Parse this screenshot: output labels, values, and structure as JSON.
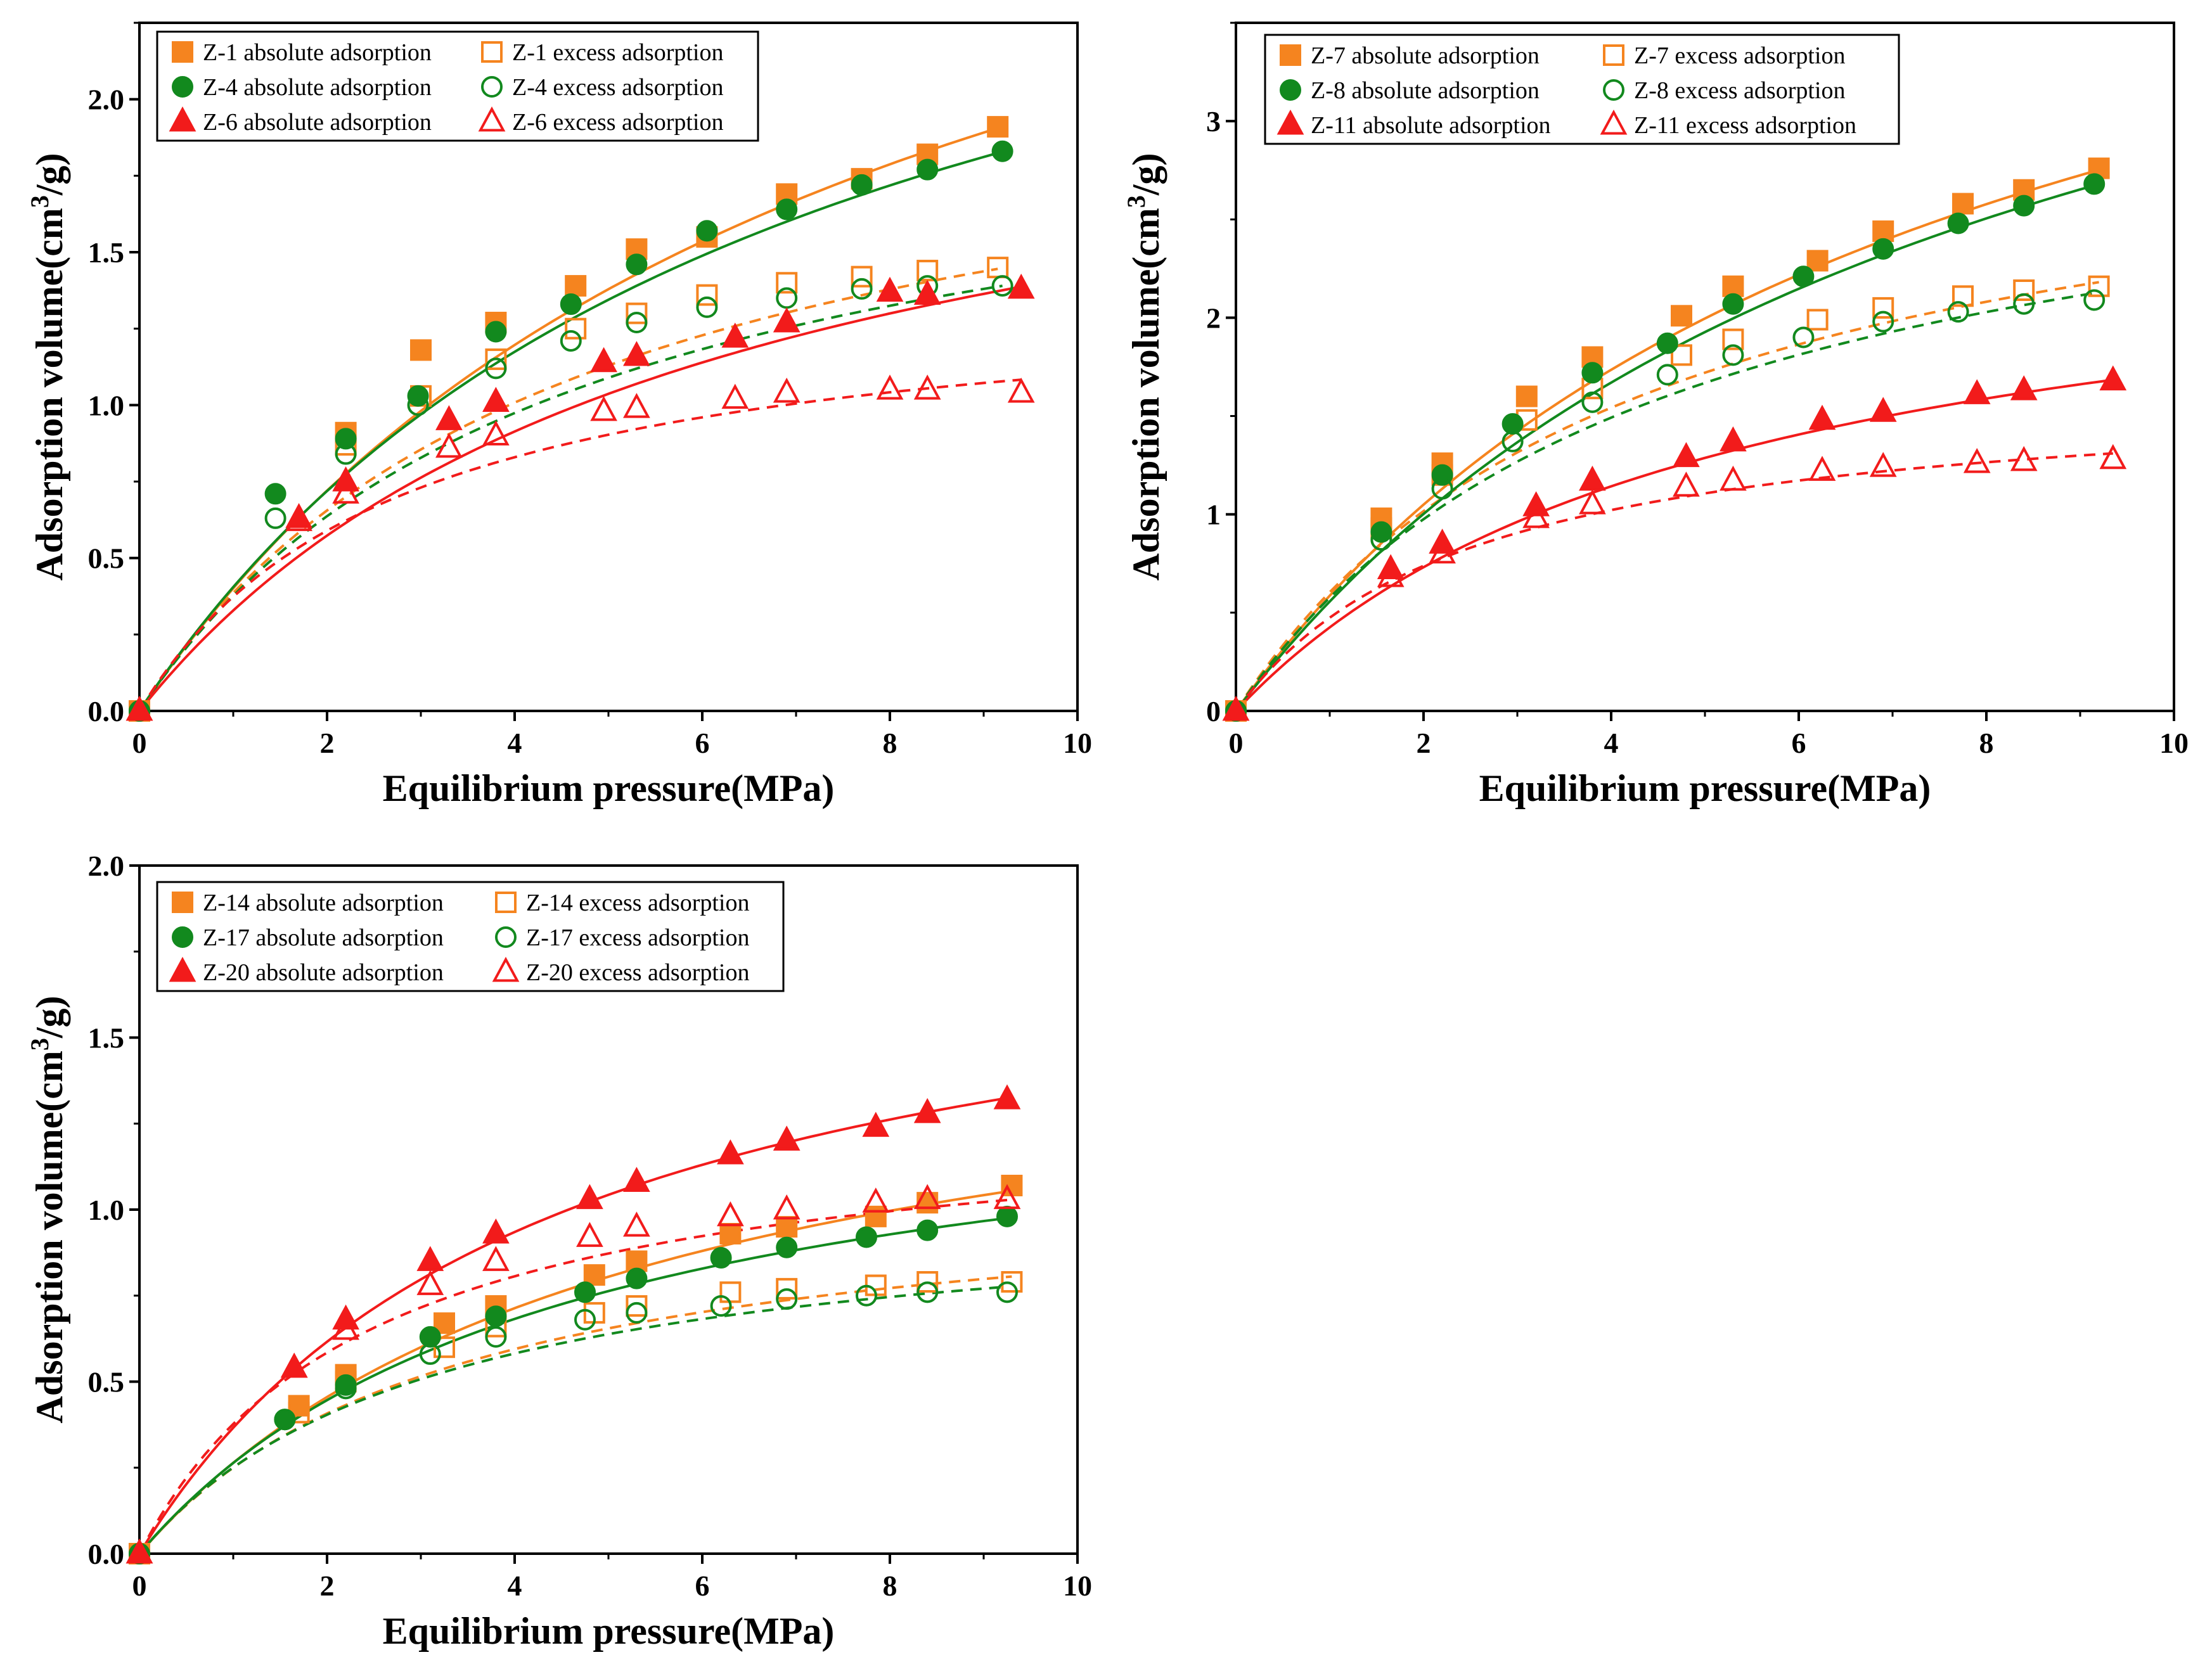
{
  "colors": {
    "orange": "#F5841F",
    "green": "#12891E",
    "red": "#F21B1B"
  },
  "chart_data": [
    {
      "type": "scatter",
      "xlabel": "Equilibrium pressure(MPa)",
      "ylabel_prefix": "Adsorption volume(cm",
      "ylabel_sup": "3",
      "ylabel_suffix": "/g)",
      "xlim": [
        0,
        10
      ],
      "ylim": [
        0,
        2.25
      ],
      "xticks": [
        0,
        2,
        4,
        6,
        8,
        10
      ],
      "yticks": [
        0.0,
        0.5,
        1.0,
        1.5,
        2.0
      ],
      "ytick_decimals": 1,
      "legend": "top-left",
      "grid": false,
      "series": [
        {
          "name": "Z-1 absolute adsorption",
          "color": "orange",
          "marker": "square",
          "filled": true,
          "dashed": false,
          "x": [
            0,
            2.2,
            3.0,
            3.8,
            4.65,
            5.3,
            6.05,
            6.9,
            7.7,
            8.4,
            9.15
          ],
          "y": [
            0,
            0.91,
            1.18,
            1.27,
            1.39,
            1.51,
            1.55,
            1.69,
            1.74,
            1.82,
            1.91
          ],
          "fit": {
            "vl": 3.53,
            "pl": 7.8
          }
        },
        {
          "name": "Z-1 excess adsorption",
          "color": "orange",
          "marker": "square",
          "filled": false,
          "dashed": true,
          "x": [
            0,
            2.2,
            3.0,
            3.8,
            4.65,
            5.3,
            6.05,
            6.9,
            7.7,
            8.4,
            9.15
          ],
          "y": [
            0,
            0.87,
            1.03,
            1.15,
            1.25,
            1.3,
            1.36,
            1.4,
            1.42,
            1.44,
            1.45
          ],
          "fit": {
            "vl": 2.18,
            "pl": 4.65
          }
        },
        {
          "name": "Z-4 absolute adsorption",
          "color": "green",
          "marker": "circle",
          "filled": true,
          "dashed": false,
          "x": [
            0,
            1.45,
            2.2,
            2.97,
            3.8,
            4.6,
            5.3,
            6.05,
            6.9,
            7.7,
            8.4,
            9.2
          ],
          "y": [
            0,
            0.71,
            0.89,
            1.03,
            1.24,
            1.33,
            1.46,
            1.57,
            1.64,
            1.72,
            1.77,
            1.83
          ],
          "fit": {
            "vl": 3.2,
            "pl": 6.9
          }
        },
        {
          "name": "Z-4 excess adsorption",
          "color": "green",
          "marker": "circle",
          "filled": false,
          "dashed": true,
          "x": [
            0,
            1.45,
            2.2,
            2.97,
            3.8,
            4.6,
            5.3,
            6.05,
            6.9,
            7.7,
            8.4,
            9.2
          ],
          "y": [
            0,
            0.63,
            0.84,
            1.0,
            1.12,
            1.21,
            1.27,
            1.32,
            1.35,
            1.38,
            1.39,
            1.39
          ],
          "fit": {
            "vl": 2.07,
            "pl": 4.5
          }
        },
        {
          "name": "Z-6 absolute adsorption",
          "color": "red",
          "marker": "triangle",
          "filled": true,
          "dashed": false,
          "x": [
            0,
            1.7,
            2.2,
            3.3,
            3.8,
            4.95,
            5.3,
            6.35,
            6.9,
            8.0,
            8.4,
            9.4
          ],
          "y": [
            0,
            0.63,
            0.75,
            0.95,
            1.01,
            1.14,
            1.16,
            1.22,
            1.27,
            1.37,
            1.36,
            1.38
          ],
          "fit": {
            "vl": 2.25,
            "pl": 5.85
          }
        },
        {
          "name": "Z-6 excess adsorption",
          "color": "red",
          "marker": "triangle",
          "filled": false,
          "dashed": true,
          "x": [
            0,
            1.7,
            2.2,
            3.3,
            3.8,
            4.95,
            5.3,
            6.35,
            6.9,
            8.0,
            8.4,
            9.4
          ],
          "y": [
            0,
            0.62,
            0.71,
            0.86,
            0.9,
            0.98,
            0.99,
            1.02,
            1.04,
            1.05,
            1.05,
            1.04
          ],
          "fit": {
            "vl": 1.4,
            "pl": 2.75
          }
        }
      ]
    },
    {
      "type": "scatter",
      "xlabel": "Equilibrium pressure(MPa)",
      "ylabel_prefix": "Adsorption volume(cm",
      "ylabel_sup": "3",
      "ylabel_suffix": "/g)",
      "xlim": [
        0,
        10
      ],
      "ylim": [
        0,
        3.5
      ],
      "xticks": [
        0,
        2,
        4,
        6,
        8,
        10
      ],
      "yticks": [
        0,
        1,
        2,
        3
      ],
      "ytick_decimals": 0,
      "legend": "top-left",
      "grid": false,
      "series": [
        {
          "name": "Z-7 absolute adsorption",
          "color": "orange",
          "marker": "square",
          "filled": true,
          "dashed": false,
          "x": [
            0,
            1.55,
            2.2,
            3.1,
            3.8,
            4.75,
            5.3,
            6.2,
            6.9,
            7.75,
            8.4,
            9.2
          ],
          "y": [
            0,
            0.98,
            1.26,
            1.6,
            1.8,
            2.01,
            2.16,
            2.29,
            2.44,
            2.58,
            2.65,
            2.76
          ],
          "fit": {
            "vl": 5.01,
            "pl": 7.55
          }
        },
        {
          "name": "Z-7 excess adsorption",
          "color": "orange",
          "marker": "square",
          "filled": false,
          "dashed": true,
          "x": [
            0,
            1.55,
            2.2,
            3.1,
            3.8,
            4.75,
            5.3,
            6.2,
            6.9,
            7.75,
            8.4,
            9.2
          ],
          "y": [
            0,
            0.93,
            1.2,
            1.48,
            1.64,
            1.81,
            1.89,
            1.99,
            2.05,
            2.11,
            2.14,
            2.16
          ],
          "fit": {
            "vl": 3.2,
            "pl": 4.3
          }
        },
        {
          "name": "Z-8 absolute adsorption",
          "color": "green",
          "marker": "circle",
          "filled": true,
          "dashed": false,
          "x": [
            0,
            1.55,
            2.2,
            2.95,
            3.8,
            4.6,
            5.3,
            6.05,
            6.9,
            7.7,
            8.4,
            9.15
          ],
          "y": [
            0,
            0.91,
            1.2,
            1.46,
            1.72,
            1.87,
            2.07,
            2.21,
            2.35,
            2.48,
            2.57,
            2.68
          ],
          "fit": {
            "vl": 5.01,
            "pl": 8.0
          }
        },
        {
          "name": "Z-8 excess adsorption",
          "color": "green",
          "marker": "circle",
          "filled": false,
          "dashed": true,
          "x": [
            0,
            1.55,
            2.2,
            2.95,
            3.8,
            4.6,
            5.3,
            6.05,
            6.9,
            7.7,
            8.4,
            9.15
          ],
          "y": [
            0,
            0.87,
            1.13,
            1.37,
            1.57,
            1.71,
            1.81,
            1.9,
            1.98,
            2.03,
            2.07,
            2.09
          ],
          "fit": {
            "vl": 3.17,
            "pl": 4.5
          }
        },
        {
          "name": "Z-11 absolute adsorption",
          "color": "red",
          "marker": "triangle",
          "filled": true,
          "dashed": false,
          "x": [
            0,
            1.65,
            2.2,
            3.2,
            3.8,
            4.8,
            5.3,
            6.25,
            6.9,
            7.9,
            8.4,
            9.35
          ],
          "y": [
            0,
            0.72,
            0.85,
            1.04,
            1.17,
            1.29,
            1.37,
            1.48,
            1.52,
            1.61,
            1.63,
            1.68
          ],
          "fit": {
            "vl": 2.61,
            "pl": 5.14
          }
        },
        {
          "name": "Z-11 excess adsorption",
          "color": "red",
          "marker": "triangle",
          "filled": false,
          "dashed": true,
          "x": [
            0,
            1.65,
            2.2,
            3.2,
            3.8,
            4.8,
            5.3,
            6.25,
            6.9,
            7.9,
            8.4,
            9.35
          ],
          "y": [
            0,
            0.68,
            0.8,
            0.98,
            1.05,
            1.14,
            1.17,
            1.22,
            1.24,
            1.26,
            1.27,
            1.28
          ],
          "fit": {
            "vl": 1.66,
            "pl": 2.5
          }
        }
      ]
    },
    {
      "type": "scatter",
      "xlabel": "Equilibrium pressure(MPa)",
      "ylabel_prefix": "Adsorption volume(cm",
      "ylabel_sup": "3",
      "ylabel_suffix": "/g)",
      "xlim": [
        0,
        10
      ],
      "ylim": [
        0,
        2.0
      ],
      "xticks": [
        0,
        2,
        4,
        6,
        8,
        10
      ],
      "yticks": [
        0.0,
        0.5,
        1.0,
        1.5,
        2.0
      ],
      "ytick_decimals": 1,
      "legend": "top-left",
      "grid": false,
      "series": [
        {
          "name": "Z-14 absolute adsorption",
          "color": "orange",
          "marker": "square",
          "filled": true,
          "dashed": false,
          "x": [
            0,
            1.7,
            2.2,
            3.25,
            3.8,
            4.85,
            5.3,
            6.3,
            6.9,
            7.85,
            8.4,
            9.3
          ],
          "y": [
            0,
            0.43,
            0.52,
            0.67,
            0.72,
            0.81,
            0.85,
            0.93,
            0.95,
            0.98,
            1.02,
            1.07
          ],
          "fit": {
            "vl": 1.65,
            "pl": 5.25
          }
        },
        {
          "name": "Z-14 excess adsorption",
          "color": "orange",
          "marker": "square",
          "filled": false,
          "dashed": true,
          "x": [
            0,
            1.7,
            2.2,
            3.25,
            3.8,
            4.85,
            5.3,
            6.3,
            6.9,
            7.85,
            8.4,
            9.3
          ],
          "y": [
            0,
            0.41,
            0.5,
            0.6,
            0.66,
            0.7,
            0.72,
            0.76,
            0.77,
            0.78,
            0.79,
            0.79
          ],
          "fit": {
            "vl": 1.1,
            "pl": 3.4
          }
        },
        {
          "name": "Z-17 absolute adsorption",
          "color": "green",
          "marker": "circle",
          "filled": true,
          "dashed": false,
          "x": [
            0,
            1.55,
            2.2,
            3.1,
            3.8,
            4.75,
            5.3,
            6.2,
            6.9,
            7.75,
            8.4,
            9.25
          ],
          "y": [
            0,
            0.39,
            0.49,
            0.63,
            0.69,
            0.76,
            0.8,
            0.86,
            0.89,
            0.92,
            0.94,
            0.98
          ],
          "fit": {
            "vl": 1.45,
            "pl": 4.5
          }
        },
        {
          "name": "Z-17 excess adsorption",
          "color": "green",
          "marker": "circle",
          "filled": false,
          "dashed": true,
          "x": [
            0,
            1.55,
            2.2,
            3.1,
            3.8,
            4.75,
            5.3,
            6.2,
            6.9,
            7.75,
            8.4,
            9.25
          ],
          "y": [
            0,
            0.39,
            0.48,
            0.58,
            0.63,
            0.68,
            0.7,
            0.72,
            0.74,
            0.75,
            0.76,
            0.76
          ],
          "fit": {
            "vl": 1.04,
            "pl": 3.15
          }
        },
        {
          "name": "Z-20 absolute adsorption",
          "color": "red",
          "marker": "triangle",
          "filled": true,
          "dashed": false,
          "x": [
            0,
            1.65,
            2.2,
            3.1,
            3.8,
            4.8,
            5.3,
            6.3,
            6.9,
            7.85,
            8.4,
            9.25
          ],
          "y": [
            0,
            0.54,
            0.68,
            0.85,
            0.93,
            1.03,
            1.08,
            1.16,
            1.2,
            1.24,
            1.28,
            1.32
          ],
          "fit": {
            "vl": 1.94,
            "pl": 4.3
          }
        },
        {
          "name": "Z-20 excess adsorption",
          "color": "red",
          "marker": "triangle",
          "filled": false,
          "dashed": true,
          "x": [
            0,
            1.65,
            2.2,
            3.1,
            3.8,
            4.8,
            5.3,
            6.3,
            6.9,
            7.85,
            8.4,
            9.25
          ],
          "y": [
            0,
            0.54,
            0.65,
            0.78,
            0.85,
            0.92,
            0.95,
            0.98,
            1.0,
            1.02,
            1.03,
            1.03
          ],
          "fit": {
            "vl": 1.3,
            "pl": 2.45
          }
        }
      ]
    }
  ]
}
